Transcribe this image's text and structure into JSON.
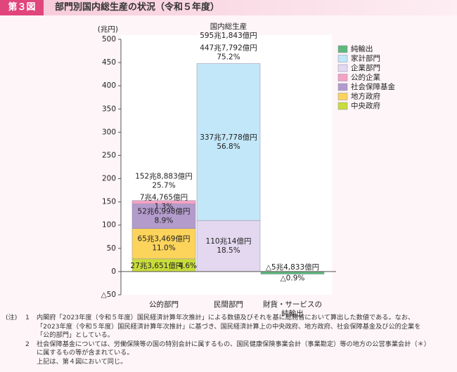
{
  "header": {
    "badge": "第３図",
    "title": "部門別国内総生産の状況（令和５年度）"
  },
  "chart_data": {
    "type": "stacked_bar",
    "y_unit": "(兆円)",
    "categories": [
      "公的部門",
      "民間部門",
      "財貨・サービスの純輸出"
    ],
    "ylim": [
      -50,
      500
    ],
    "yticks": [
      {
        "value": -50,
        "label": "△50"
      },
      0,
      50,
      100,
      150,
      200,
      250,
      300,
      350,
      400,
      450,
      500
    ],
    "legend": "right",
    "series": [
      {
        "name": "中央政府",
        "color": "#c9dc3a",
        "values": [
          27.3651,
          null,
          null
        ],
        "value_labels": [
          "27兆3,651億円",
          null,
          null
        ],
        "share_labels": [
          "4.6%",
          null,
          null
        ]
      },
      {
        "name": "地方政府",
        "color": "#fcd45c",
        "values": [
          65.3469,
          null,
          null
        ],
        "value_labels": [
          "65兆3,469億円",
          null,
          null
        ],
        "share_labels": [
          "11.0%",
          null,
          null
        ]
      },
      {
        "name": "社会保障基金",
        "color": "#b39bcb",
        "values": [
          52.6998,
          null,
          null
        ],
        "value_labels": [
          "52兆6,998億円",
          null,
          null
        ],
        "share_labels": [
          "8.9%",
          null,
          null
        ]
      },
      {
        "name": "公的企業",
        "color": "#f3a3c4",
        "values": [
          7.4765,
          null,
          null
        ],
        "value_labels": [
          "7兆4,765億円",
          null,
          null
        ],
        "share_labels": [
          "1.3%",
          null,
          null
        ]
      },
      {
        "name": "企業部門",
        "color": "#e3d8ef",
        "values": [
          null,
          110.0014,
          null
        ],
        "value_labels": [
          null,
          "110兆14億円",
          null
        ],
        "share_labels": [
          null,
          "18.5%",
          null
        ]
      },
      {
        "name": "家計部門",
        "color": "#c2e7f8",
        "values": [
          null,
          337.7778,
          null
        ],
        "value_labels": [
          null,
          "337兆7,778億円",
          null
        ],
        "share_labels": [
          null,
          "56.8%",
          null
        ]
      },
      {
        "name": "純輸出",
        "color": "#5db97b",
        "values": [
          null,
          null,
          -5.4833
        ],
        "value_labels": [
          null,
          null,
          "△5兆4,833億円"
        ],
        "share_labels": [
          null,
          null,
          "△0.9%"
        ]
      }
    ],
    "totals": {
      "values": [
        152.8883,
        447.7792,
        null
      ],
      "value_labels": [
        "152兆8,883億円",
        "447兆7,792億円",
        null
      ],
      "share_labels": [
        "25.7%",
        "75.2%",
        null
      ]
    },
    "gdp": {
      "label": "国内総生産",
      "value_label": "595兆1,843億円"
    }
  },
  "notes": {
    "mark": "(注)",
    "items": [
      {
        "number": "1",
        "lines": [
          "内閣府「2023年度（令和５年度）国民経済計算年次推計」による数値及びそれを基に総務省において算出した数値である。なお、",
          "「2023年度（令和５年度）国民経済計算年次推計」に基づき、国民経済計算上の中央政府、地方政府、社会保障基金及び公的企業を",
          "「公的部門」としている。"
        ]
      },
      {
        "number": "2",
        "lines": [
          "社会保障基金については、労働保険等の国の特別会計に属するもの、国民健康保険事業会計（事業勘定）等の地方の公営事業会計（＊）",
          "に属するもの等が含まれている。",
          "上記は、第４図において同じ。"
        ]
      }
    ]
  }
}
